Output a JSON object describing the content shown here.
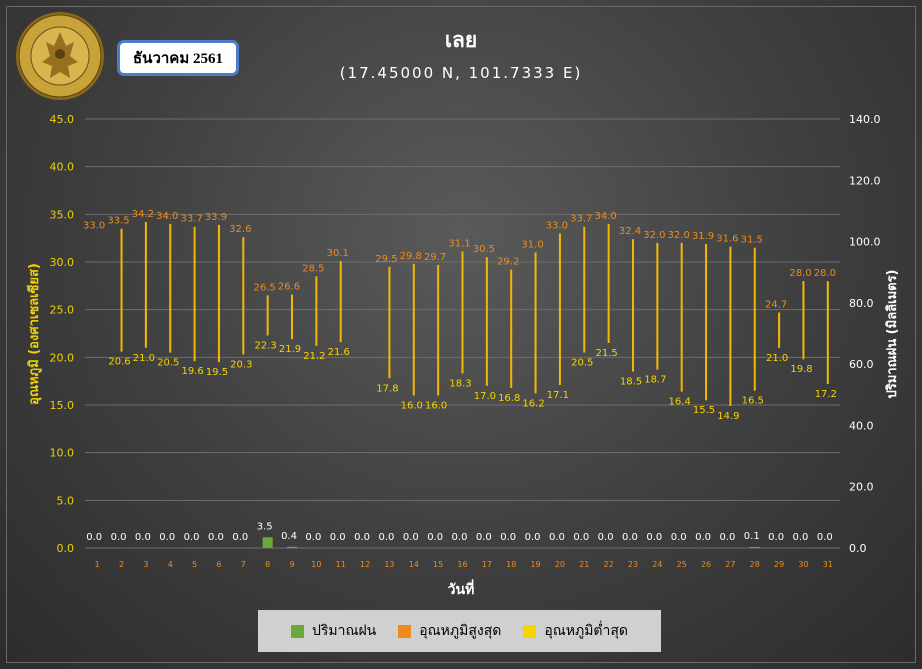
{
  "header": {
    "month_label": "ธันวาคม 2561",
    "title": "เลย",
    "subtitle": "(17.45000 N, 101.7333 E)"
  },
  "logo": {
    "text": "METEOROLOGICAL DEPARTMENT"
  },
  "colors": {
    "rain": "#6aaa3a",
    "tmax": "#f08a1c",
    "tmin": "#f5d400",
    "bar_line": "#f5b800",
    "left_axis": "#f0d000",
    "right_axis": "#ffffff",
    "label_max": "#f08a1c",
    "label_min": "#f5d400",
    "label_rain": "#ffffff"
  },
  "legend": {
    "rain": "ปริมาณฝน",
    "tmax": "อุณหภูมิสูงสุด",
    "tmin": "อุณหภูมิต่ำสุด"
  },
  "chart_data": {
    "type": "bar",
    "xlabel": "วันที่",
    "ylabel": "อุณหภูมิ (องศาเซลเซียส)",
    "y2label": "ปริมาณฝน (มิลลิเมตร)",
    "ylim": [
      0,
      45
    ],
    "y2lim": [
      0,
      140
    ],
    "y_ticks": [
      "0.0",
      "5.0",
      "10.0",
      "15.0",
      "20.0",
      "25.0",
      "30.0",
      "35.0",
      "40.0",
      "45.0"
    ],
    "y2_ticks": [
      "0.0",
      "20.0",
      "40.0",
      "60.0",
      "80.0",
      "100.0",
      "120.0",
      "140.0"
    ],
    "categories": [
      "1",
      "2",
      "3",
      "4",
      "5",
      "6",
      "7",
      "8",
      "9",
      "10",
      "11",
      "12",
      "13",
      "14",
      "15",
      "16",
      "17",
      "18",
      "19",
      "20",
      "21",
      "22",
      "23",
      "24",
      "25",
      "26",
      "27",
      "28",
      "29",
      "30",
      "31"
    ],
    "series": [
      {
        "name": "อุณหภูมิสูงสุด",
        "values": [
          33.0,
          33.5,
          34.2,
          34.0,
          33.7,
          33.9,
          32.6,
          26.5,
          26.6,
          28.5,
          30.1,
          null,
          29.5,
          29.8,
          29.7,
          31.1,
          30.5,
          29.2,
          31.0,
          33.0,
          33.7,
          34.0,
          32.4,
          32.0,
          32.0,
          31.9,
          31.6,
          31.5,
          24.7,
          28.0,
          28.0
        ]
      },
      {
        "name": "อุณหภูมิต่ำสุด",
        "values": [
          null,
          20.6,
          21.0,
          20.5,
          19.6,
          19.5,
          20.3,
          22.3,
          21.9,
          21.2,
          21.6,
          null,
          17.8,
          16.0,
          16.0,
          18.3,
          17.0,
          16.8,
          16.2,
          17.1,
          20.5,
          21.5,
          18.5,
          18.7,
          16.4,
          15.5,
          14.9,
          16.5,
          21.0,
          19.8,
          17.2
        ]
      },
      {
        "name": "ปริมาณฝน",
        "values": [
          0.0,
          0.0,
          0.0,
          0.0,
          0.0,
          0.0,
          0.0,
          3.5,
          0.4,
          0.0,
          0.0,
          0.0,
          0.0,
          0.0,
          0.0,
          0.0,
          0.0,
          0.0,
          0.0,
          0.0,
          0.0,
          0.0,
          0.0,
          0.0,
          0.0,
          0.0,
          0.0,
          0.1,
          0.0,
          0.0,
          0.0
        ]
      }
    ]
  }
}
